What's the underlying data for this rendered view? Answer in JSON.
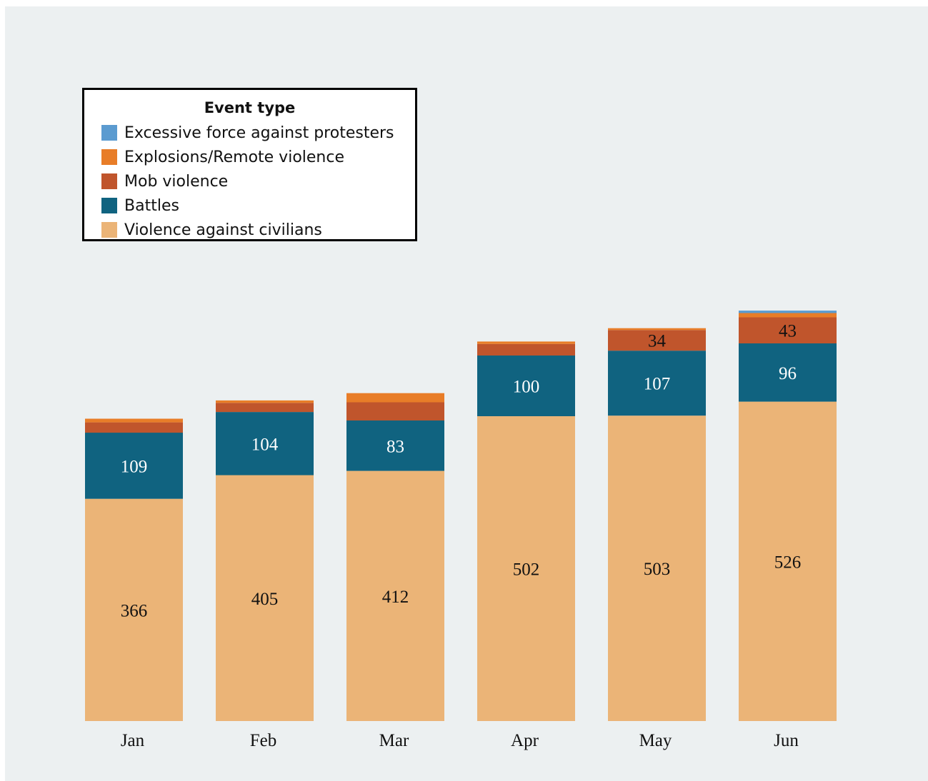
{
  "chart_data": {
    "type": "bar",
    "stacked": true,
    "categories": [
      "Jan",
      "Feb",
      "Mar",
      "Apr",
      "May",
      "Jun"
    ],
    "series": [
      {
        "name": "Violence against civilians",
        "color": "#ebb477",
        "label_color": "#111111",
        "values": [
          366,
          405,
          412,
          502,
          503,
          526
        ],
        "labels": [
          "366",
          "405",
          "412",
          "502",
          "503",
          "526"
        ]
      },
      {
        "name": "Battles",
        "color": "#106380",
        "label_color": "#ffffff",
        "values": [
          109,
          104,
          83,
          100,
          107,
          96
        ],
        "labels": [
          "109",
          "104",
          "83",
          "100",
          "107",
          "96"
        ]
      },
      {
        "name": "Mob violence",
        "color": "#c0552c",
        "label_color": "#111111",
        "values": [
          17,
          15,
          30,
          19,
          34,
          43
        ],
        "labels": [
          "",
          "",
          "",
          "",
          "34",
          "43"
        ]
      },
      {
        "name": "Explosions/Remote violence",
        "color": "#e87d28",
        "label_color": "#111111",
        "values": [
          6,
          4,
          15,
          4,
          3,
          7
        ],
        "labels": [
          "",
          "",
          "",
          "",
          "",
          ""
        ]
      },
      {
        "name": "Excessive force against protesters",
        "color": "#5b9bd0",
        "label_color": "#111111",
        "values": [
          0,
          0,
          0,
          0,
          0,
          4
        ],
        "labels": [
          "",
          "",
          "",
          "",
          "",
          ""
        ]
      }
    ],
    "ylim": [
      0,
      700
    ],
    "grid": false,
    "legend": {
      "title": "Event type",
      "placement": "top-left",
      "items": [
        {
          "name": "Excessive force against protesters",
          "color": "#5b9bd0"
        },
        {
          "name": "Explosions/Remote violence",
          "color": "#e87d28"
        },
        {
          "name": "Mob violence",
          "color": "#c0552c"
        },
        {
          "name": "Battles",
          "color": "#106380"
        },
        {
          "name": "Violence against civilians",
          "color": "#ebb477"
        }
      ]
    }
  }
}
